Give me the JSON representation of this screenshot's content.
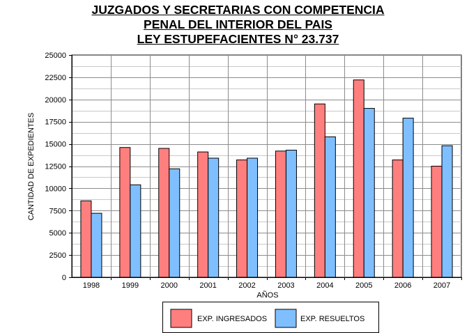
{
  "chart_data": {
    "type": "bar",
    "title_lines": [
      "JUZGADOS Y SECRETARIAS CON COMPETENCIA",
      "PENAL DEL INTERIOR DEL PAIS",
      "LEY ESTUPEFACIENTES N° 23.737"
    ],
    "xlabel": "AÑOS",
    "ylabel": "CANTIDAD DE EXPEDIENTES",
    "ylim": [
      0,
      25000
    ],
    "yticks": [
      0,
      2500,
      5000,
      7500,
      10000,
      12500,
      15000,
      17500,
      20000,
      22500,
      25000
    ],
    "grid": true,
    "legend_position": "bottom",
    "categories": [
      "1998",
      "1999",
      "2000",
      "2001",
      "2002",
      "2003",
      "2004",
      "2005",
      "2006",
      "2007"
    ],
    "series": [
      {
        "name": "EXP. INGRESADOS",
        "color": "#ff7f7f",
        "values": [
          8600,
          14600,
          14500,
          14100,
          13200,
          14200,
          19500,
          22200,
          13200,
          12500
        ]
      },
      {
        "name": "EXP. RESUELTOS",
        "color": "#7fbfff",
        "values": [
          7200,
          10400,
          12200,
          13400,
          13400,
          14300,
          15800,
          19000,
          17900,
          14800
        ]
      }
    ]
  }
}
